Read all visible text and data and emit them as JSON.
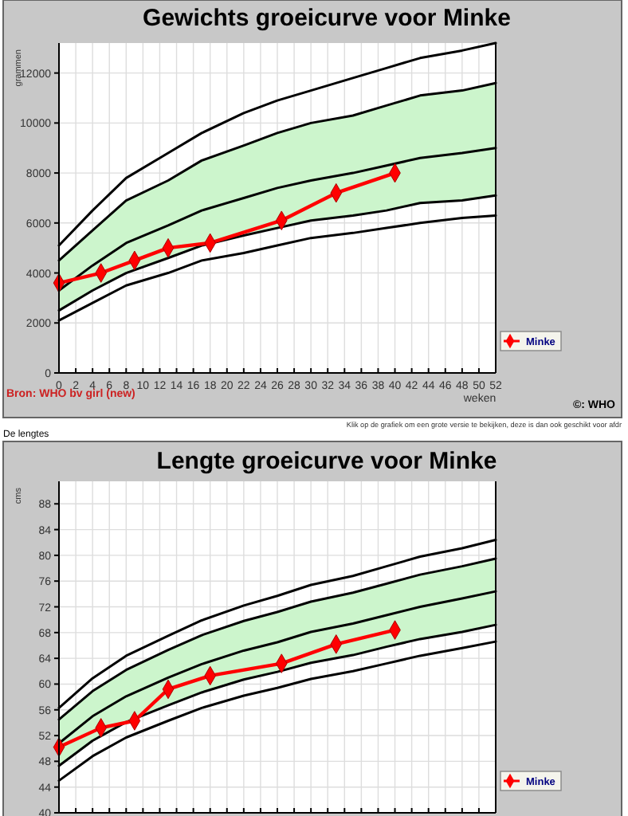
{
  "chart_data": [
    {
      "type": "line",
      "title": "Gewichts groeicurve voor Minke",
      "ylabel": "grammen",
      "xlabel": "weken",
      "xlim": [
        0,
        52
      ],
      "ylim": [
        0,
        13200
      ],
      "xticks": [
        0,
        2,
        4,
        6,
        8,
        10,
        12,
        14,
        16,
        18,
        20,
        22,
        24,
        26,
        28,
        30,
        32,
        34,
        36,
        38,
        40,
        42,
        44,
        46,
        48,
        50,
        52
      ],
      "yticks": [
        0,
        2000,
        4000,
        6000,
        8000,
        10000,
        12000
      ],
      "grid": true,
      "legend": "bottom right",
      "annotations": [
        "Bron: WHO bv girl (new)",
        "©: WHO",
        "Klik op de grafiek om een grote versie te bekijken, deze is dan ook geschikt voor afdr"
      ],
      "series": [
        {
          "color": "#000000",
          "marker": "none",
          "x": [
            0,
            4,
            8,
            13,
            17,
            22,
            26,
            30,
            35,
            39,
            43,
            48,
            52
          ],
          "values": [
            5100,
            6500,
            7800,
            8800,
            9600,
            10400,
            10900,
            11300,
            11800,
            12200,
            12600,
            12900,
            13200
          ]
        },
        {
          "color": "#000000",
          "marker": "none",
          "x": [
            0,
            4,
            8,
            13,
            17,
            22,
            26,
            30,
            35,
            39,
            43,
            48,
            52
          ],
          "values": [
            4500,
            5700,
            6900,
            7700,
            8500,
            9100,
            9600,
            10000,
            10300,
            10700,
            11100,
            11300,
            11600
          ]
        },
        {
          "color": "#000000",
          "marker": "none",
          "x": [
            0,
            4,
            8,
            13,
            17,
            22,
            26,
            30,
            35,
            39,
            43,
            48,
            52
          ],
          "values": [
            3300,
            4300,
            5200,
            5900,
            6500,
            7000,
            7400,
            7700,
            8000,
            8300,
            8600,
            8800,
            9000
          ],
          "upper": [
            4500,
            5700,
            6900,
            7700,
            8500,
            9100,
            9600,
            10000,
            10300,
            10700,
            11100,
            11300,
            11600
          ],
          "lower": [
            2500,
            3300,
            4000,
            4600,
            5100,
            5500,
            5800,
            6100,
            6300,
            6500,
            6800,
            6900,
            7100
          ]
        },
        {
          "color": "#000000",
          "marker": "none",
          "x": [
            0,
            4,
            8,
            13,
            17,
            22,
            26,
            30,
            35,
            39,
            43,
            48,
            52
          ],
          "values": [
            2500,
            3300,
            4000,
            4600,
            5100,
            5500,
            5800,
            6100,
            6300,
            6500,
            6800,
            6900,
            7100
          ]
        },
        {
          "color": "#000000",
          "marker": "none",
          "x": [
            0,
            4,
            8,
            13,
            17,
            22,
            26,
            30,
            35,
            39,
            43,
            48,
            52
          ],
          "values": [
            2100,
            2800,
            3500,
            4000,
            4500,
            4800,
            5100,
            5400,
            5600,
            5800,
            6000,
            6200,
            6300
          ]
        },
        {
          "name": "Minke",
          "color": "#ff0000",
          "marker": "diamond",
          "x": [
            0,
            5,
            9,
            13,
            18,
            26.5,
            33,
            40
          ],
          "values": [
            3600,
            4000,
            4500,
            5000,
            5200,
            6100,
            7200,
            8000
          ]
        }
      ]
    },
    {
      "type": "line",
      "title": "Lengte groeicurve voor Minke",
      "ylabel": "cms",
      "xlim": [
        0,
        52
      ],
      "ylim": [
        40,
        91.5
      ],
      "xticks": [
        0,
        2,
        4,
        6,
        8,
        10,
        12,
        14,
        16,
        18,
        20,
        22,
        24,
        26,
        28,
        30,
        32,
        34,
        36,
        38,
        40,
        42,
        44,
        46,
        48,
        50,
        52
      ],
      "yticks": [
        40,
        44,
        48,
        52,
        56,
        60,
        64,
        68,
        72,
        76,
        80,
        84,
        88
      ],
      "tick_labels": "y",
      "grid": true,
      "legend": "bottom right",
      "annotations": [
        "De lengtes"
      ],
      "series": [
        {
          "color": "#000000",
          "marker": "none",
          "x": [
            0,
            4,
            8,
            13,
            17,
            22,
            26,
            30,
            35,
            39,
            43,
            48,
            52
          ],
          "values": [
            56.3,
            60.9,
            64.4,
            67.5,
            69.9,
            72.2,
            73.7,
            75.4,
            76.8,
            78.3,
            79.8,
            81.1,
            82.4
          ]
        },
        {
          "color": "#000000",
          "marker": "none",
          "x": [
            0,
            4,
            8,
            13,
            17,
            22,
            26,
            30,
            35,
            39,
            43,
            48,
            52
          ],
          "values": [
            54.5,
            58.9,
            62.2,
            65.3,
            67.6,
            69.8,
            71.2,
            72.8,
            74.2,
            75.6,
            77.0,
            78.3,
            79.5
          ]
        },
        {
          "color": "#000000",
          "marker": "none",
          "x": [
            0,
            4,
            8,
            13,
            17,
            22,
            26,
            30,
            35,
            39,
            43,
            48,
            52
          ],
          "values": [
            50.8,
            55.0,
            58.1,
            61.0,
            63.1,
            65.2,
            66.5,
            68.1,
            69.4,
            70.7,
            72.0,
            73.3,
            74.4
          ],
          "upper": [
            54.5,
            58.9,
            62.2,
            65.3,
            67.6,
            69.8,
            71.2,
            72.8,
            74.2,
            75.6,
            77.0,
            78.3,
            79.5
          ],
          "lower": [
            47.3,
            51.2,
            54.1,
            56.7,
            58.7,
            60.7,
            61.9,
            63.3,
            64.5,
            65.8,
            67.0,
            68.1,
            69.2
          ]
        },
        {
          "color": "#000000",
          "marker": "none",
          "x": [
            0,
            4,
            8,
            13,
            17,
            22,
            26,
            30,
            35,
            39,
            43,
            48,
            52
          ],
          "values": [
            47.3,
            51.2,
            54.1,
            56.7,
            58.7,
            60.7,
            61.9,
            63.3,
            64.5,
            65.8,
            67.0,
            68.1,
            69.2
          ]
        },
        {
          "color": "#000000",
          "marker": "none",
          "x": [
            0,
            4,
            8,
            13,
            17,
            22,
            26,
            30,
            35,
            39,
            43,
            48,
            52
          ],
          "values": [
            45.0,
            48.8,
            51.7,
            54.3,
            56.3,
            58.2,
            59.4,
            60.8,
            62.0,
            63.2,
            64.4,
            65.6,
            66.6
          ]
        },
        {
          "name": "Minke",
          "color": "#ff0000",
          "marker": "diamond",
          "x": [
            0,
            5,
            9,
            13,
            18,
            26.5,
            33,
            40
          ],
          "values": [
            50.2,
            53.2,
            54.3,
            59.2,
            61.3,
            63.2,
            66.2,
            68.4
          ]
        }
      ]
    }
  ]
}
